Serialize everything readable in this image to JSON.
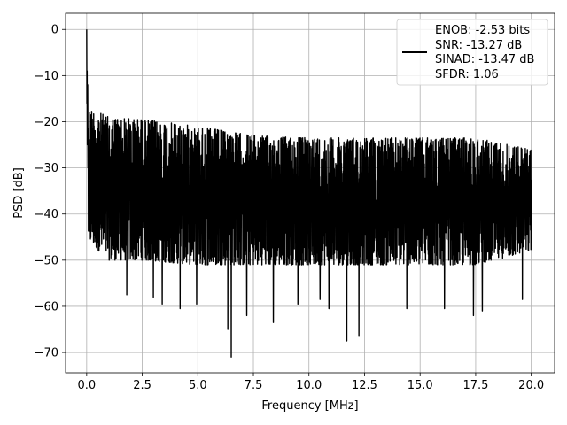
{
  "chart_data": {
    "type": "line",
    "title": "",
    "xlabel": "Frequency [MHz]",
    "ylabel": "PSD [dB]",
    "xlim": [
      -0.95,
      21.05
    ],
    "ylim": [
      -74.4,
      3.5
    ],
    "xticks": [
      0.0,
      2.5,
      5.0,
      7.5,
      10.0,
      12.5,
      15.0,
      17.5,
      20.0
    ],
    "xtick_labels": [
      "0.0",
      "2.5",
      "5.0",
      "7.5",
      "10.0",
      "12.5",
      "15.0",
      "17.5",
      "20.0"
    ],
    "yticks": [
      0,
      -10,
      -20,
      -30,
      -40,
      -50,
      -60,
      -70
    ],
    "ytick_labels": [
      "0",
      "−10",
      "−20",
      "−30",
      "−40",
      "−50",
      "−60",
      "−70"
    ],
    "grid": true,
    "line_color": "#000000",
    "legend_position": "top-right",
    "legend": [
      "ENOB: -2.53 bits",
      "SNR: -13.27 dB",
      "SINAD: -13.47 dB",
      "SFDR: 1.06"
    ],
    "series": [
      {
        "x_range": [
          0,
          20
        ],
        "peak": {
          "x": 0.0,
          "y": 0.0
        },
        "envelope": [
          {
            "x": 0.0,
            "upper": 0.0,
            "lower": -46
          },
          {
            "x": 0.1,
            "upper": -17,
            "lower": -46
          },
          {
            "x": 1.0,
            "upper": -19,
            "lower": -50
          },
          {
            "x": 2.5,
            "upper": -19.5,
            "lower": -50
          },
          {
            "x": 5.0,
            "upper": -21,
            "lower": -51
          },
          {
            "x": 7.5,
            "upper": -23,
            "lower": -51
          },
          {
            "x": 10.0,
            "upper": -23.5,
            "lower": -51
          },
          {
            "x": 12.5,
            "upper": -23.5,
            "lower": -51
          },
          {
            "x": 15.0,
            "upper": -23.5,
            "lower": -51
          },
          {
            "x": 17.5,
            "upper": -23.5,
            "lower": -51
          },
          {
            "x": 20.0,
            "upper": -26,
            "lower": -48
          }
        ],
        "notable_minima": [
          {
            "x": 1.8,
            "y": -57.5
          },
          {
            "x": 3.0,
            "y": -58
          },
          {
            "x": 3.4,
            "y": -59.5
          },
          {
            "x": 4.2,
            "y": -60.5
          },
          {
            "x": 4.95,
            "y": -59.5
          },
          {
            "x": 6.35,
            "y": -65
          },
          {
            "x": 6.5,
            "y": -71
          },
          {
            "x": 7.2,
            "y": -62
          },
          {
            "x": 8.4,
            "y": -63.5
          },
          {
            "x": 9.5,
            "y": -59.5
          },
          {
            "x": 10.5,
            "y": -58.5
          },
          {
            "x": 10.9,
            "y": -60.5
          },
          {
            "x": 11.7,
            "y": -67.5
          },
          {
            "x": 12.25,
            "y": -66.5
          },
          {
            "x": 14.4,
            "y": -60.5
          },
          {
            "x": 16.1,
            "y": -60.5
          },
          {
            "x": 17.4,
            "y": -62
          },
          {
            "x": 17.8,
            "y": -61
          },
          {
            "x": 19.6,
            "y": -58.5
          }
        ]
      }
    ]
  }
}
